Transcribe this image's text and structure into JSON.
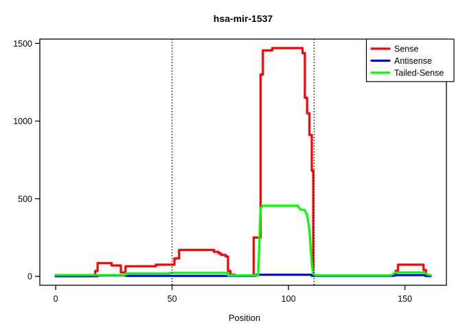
{
  "chart_data": {
    "type": "line",
    "subtype": "step-coverage-profile",
    "title": "hsa-mir-1537",
    "xlabel": "Position",
    "ylabel": "",
    "x_ticks": [
      0,
      50,
      100,
      150
    ],
    "y_ticks": [
      0,
      500,
      1000,
      1500
    ],
    "xlim": [
      0,
      161
    ],
    "ylim": [
      0,
      1500
    ],
    "grid": false,
    "legend_position": "top-right",
    "vlines": {
      "positions": [
        50,
        111
      ],
      "style": "dotted",
      "color": "#000000"
    },
    "series": [
      {
        "name": "Sense",
        "color": "#FF0000",
        "points": [
          [
            0,
            8
          ],
          [
            17,
            8
          ],
          [
            17,
            35
          ],
          [
            18,
            35
          ],
          [
            18,
            85
          ],
          [
            24,
            85
          ],
          [
            24,
            70
          ],
          [
            28,
            70
          ],
          [
            28,
            25
          ],
          [
            30,
            25
          ],
          [
            30,
            65
          ],
          [
            43,
            65
          ],
          [
            43,
            75
          ],
          [
            51,
            75
          ],
          [
            51,
            115
          ],
          [
            53,
            115
          ],
          [
            53,
            170
          ],
          [
            68,
            170
          ],
          [
            68,
            158
          ],
          [
            70,
            158
          ],
          [
            70,
            148
          ],
          [
            71,
            148
          ],
          [
            71,
            138
          ],
          [
            73,
            138
          ],
          [
            73,
            128
          ],
          [
            74,
            128
          ],
          [
            74,
            35
          ],
          [
            75,
            35
          ],
          [
            75,
            10
          ],
          [
            77,
            10
          ],
          [
            77,
            5
          ],
          [
            85,
            5
          ],
          [
            85,
            250
          ],
          [
            88,
            250
          ],
          [
            88,
            1300
          ],
          [
            89,
            1300
          ],
          [
            89,
            1455
          ],
          [
            93,
            1455
          ],
          [
            93,
            1470
          ],
          [
            106,
            1470
          ],
          [
            106,
            1438
          ],
          [
            107,
            1438
          ],
          [
            107,
            1150
          ],
          [
            108,
            1150
          ],
          [
            108,
            1050
          ],
          [
            109,
            1050
          ],
          [
            109,
            910
          ],
          [
            110,
            910
          ],
          [
            110,
            680
          ],
          [
            110.6,
            680
          ],
          [
            110.6,
            10
          ],
          [
            111,
            10
          ],
          [
            111,
            5
          ],
          [
            146,
            5
          ],
          [
            146,
            35
          ],
          [
            147,
            35
          ],
          [
            147,
            75
          ],
          [
            158,
            75
          ],
          [
            158,
            40
          ],
          [
            159,
            40
          ],
          [
            159,
            10
          ],
          [
            161,
            8
          ]
        ]
      },
      {
        "name": "Antisense",
        "color": "#0000FF",
        "points": [
          [
            0,
            1
          ],
          [
            18,
            1
          ],
          [
            18,
            6
          ],
          [
            30,
            6
          ],
          [
            30,
            3
          ],
          [
            86,
            3
          ],
          [
            86,
            10
          ],
          [
            110,
            10
          ],
          [
            110,
            3
          ],
          [
            145,
            3
          ],
          [
            145,
            8
          ],
          [
            158,
            8
          ],
          [
            159,
            2
          ],
          [
            161,
            1
          ]
        ]
      },
      {
        "name": "Tailed-Sense",
        "color": "#00FF00",
        "points": [
          [
            0,
            8
          ],
          [
            30,
            8
          ],
          [
            30,
            18
          ],
          [
            49,
            18
          ],
          [
            49,
            22
          ],
          [
            74,
            22
          ],
          [
            74,
            6
          ],
          [
            87,
            6
          ],
          [
            88,
            440
          ],
          [
            89,
            455
          ],
          [
            104,
            455
          ],
          [
            105,
            432
          ],
          [
            107,
            425
          ],
          [
            108,
            395
          ],
          [
            109,
            300
          ],
          [
            110,
            80
          ],
          [
            110.6,
            15
          ],
          [
            111,
            6
          ],
          [
            144,
            6
          ],
          [
            145,
            15
          ],
          [
            146,
            25
          ],
          [
            158,
            25
          ],
          [
            159,
            18
          ],
          [
            160,
            10
          ],
          [
            161,
            8
          ]
        ]
      }
    ]
  }
}
